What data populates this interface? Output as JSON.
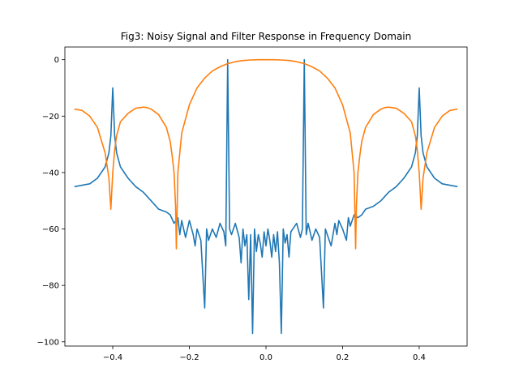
{
  "chart_data": {
    "type": "line",
    "title": "Fig3: Noisy Signal and Filter Response in Frequency Domain",
    "xlabel": "",
    "ylabel": "",
    "xlim": [
      -0.525,
      0.525
    ],
    "ylim": [
      -101.5,
      4.5
    ],
    "x_ticks": [
      -0.4,
      -0.2,
      0.0,
      0.2,
      0.4
    ],
    "x_tick_labels": [
      "−0.4",
      "−0.2",
      "0.0",
      "0.2",
      "0.4"
    ],
    "y_ticks": [
      0,
      -20,
      -40,
      -60,
      -80,
      -100
    ],
    "y_tick_labels": [
      "0",
      "−20",
      "−40",
      "−60",
      "−80",
      "−100"
    ],
    "grid": false,
    "legend": "none",
    "series": [
      {
        "color": "#1f77b4",
        "x": [
          -0.5,
          -0.48,
          -0.46,
          -0.44,
          -0.42,
          -0.41,
          -0.405,
          -0.4,
          -0.395,
          -0.39,
          -0.38,
          -0.36,
          -0.34,
          -0.32,
          -0.3,
          -0.28,
          -0.26,
          -0.25,
          -0.24,
          -0.23,
          -0.225,
          -0.22,
          -0.215,
          -0.21,
          -0.2,
          -0.19,
          -0.185,
          -0.18,
          -0.17,
          -0.16,
          -0.155,
          -0.15,
          -0.14,
          -0.13,
          -0.12,
          -0.11,
          -0.105,
          -0.1,
          -0.095,
          -0.09,
          -0.08,
          -0.07,
          -0.065,
          -0.06,
          -0.055,
          -0.05,
          -0.045,
          -0.04,
          -0.035,
          -0.03,
          -0.025,
          -0.02,
          -0.015,
          -0.01,
          -0.005,
          0.0,
          0.005,
          0.01,
          0.015,
          0.02,
          0.025,
          0.03,
          0.035,
          0.04,
          0.045,
          0.05,
          0.055,
          0.06,
          0.065,
          0.07,
          0.08,
          0.09,
          0.095,
          0.1,
          0.105,
          0.11,
          0.12,
          0.13,
          0.14,
          0.15,
          0.155,
          0.16,
          0.17,
          0.18,
          0.185,
          0.19,
          0.2,
          0.21,
          0.215,
          0.22,
          0.225,
          0.23,
          0.24,
          0.25,
          0.26,
          0.28,
          0.3,
          0.32,
          0.34,
          0.36,
          0.38,
          0.39,
          0.395,
          0.4,
          0.405,
          0.41,
          0.42,
          0.44,
          0.46,
          0.48,
          0.5
        ],
        "y": [
          -45,
          -44.5,
          -44,
          -42,
          -38,
          -33,
          -27,
          -10,
          -27,
          -33,
          -38,
          -42,
          -45,
          -47,
          -50,
          -53,
          -54,
          -55,
          -58,
          -56,
          -62,
          -57,
          -60,
          -63,
          -57,
          -62,
          -66,
          -60,
          -64,
          -88,
          -60,
          -64,
          -60,
          -63,
          -58,
          -61,
          -66,
          0,
          -60,
          -62,
          -58,
          -63,
          -72,
          -60,
          -66,
          -62,
          -85,
          -62,
          -97,
          -60,
          -68,
          -62,
          -65,
          -70,
          -61,
          -66,
          -60,
          -64,
          -70,
          -62,
          -68,
          -61,
          -72,
          -97,
          -60,
          -65,
          -62,
          -70,
          -61,
          -60,
          -58,
          -63,
          -60,
          0,
          -62,
          -58,
          -64,
          -60,
          -63,
          -88,
          -60,
          -62,
          -66,
          -58,
          -62,
          -57,
          -60,
          -64,
          -56,
          -59,
          -57,
          -55,
          -56,
          -55,
          -53,
          -52,
          -50,
          -47,
          -45,
          -42,
          -38,
          -33,
          -27,
          -10,
          -27,
          -33,
          -38,
          -42,
          -44,
          -44.5,
          -45
        ]
      },
      {
        "color": "#ff7f0e",
        "x": [
          -0.5,
          -0.48,
          -0.46,
          -0.44,
          -0.42,
          -0.41,
          -0.405,
          -0.4,
          -0.395,
          -0.39,
          -0.38,
          -0.36,
          -0.34,
          -0.32,
          -0.31,
          -0.3,
          -0.28,
          -0.26,
          -0.25,
          -0.245,
          -0.24,
          -0.236,
          -0.234,
          -0.23,
          -0.22,
          -0.2,
          -0.18,
          -0.16,
          -0.14,
          -0.12,
          -0.1,
          -0.08,
          -0.06,
          -0.04,
          -0.02,
          0.0,
          0.02,
          0.04,
          0.06,
          0.08,
          0.1,
          0.12,
          0.14,
          0.16,
          0.18,
          0.2,
          0.22,
          0.23,
          0.234,
          0.236,
          0.24,
          0.245,
          0.25,
          0.26,
          0.28,
          0.3,
          0.31,
          0.32,
          0.34,
          0.36,
          0.38,
          0.39,
          0.395,
          0.4,
          0.405,
          0.41,
          0.42,
          0.44,
          0.46,
          0.48,
          0.5
        ],
        "y": [
          -17.5,
          -18,
          -20,
          -24,
          -33,
          -42,
          -53,
          -40,
          -32,
          -27,
          -22,
          -19,
          -17.2,
          -16.8,
          -17,
          -17.5,
          -19.5,
          -24,
          -29,
          -34,
          -40,
          -52,
          -67,
          -40,
          -26,
          -16,
          -10,
          -6.5,
          -4,
          -2.5,
          -1.4,
          -0.7,
          -0.3,
          -0.1,
          0,
          0,
          0,
          -0.1,
          -0.3,
          -0.7,
          -1.4,
          -2.5,
          -4,
          -6.5,
          -10,
          -16,
          -26,
          -40,
          -67,
          -52,
          -40,
          -34,
          -29,
          -24,
          -19.5,
          -17.5,
          -17,
          -16.8,
          -17.2,
          -19,
          -22,
          -27,
          -32,
          -40,
          -53,
          -42,
          -33,
          -24,
          -20,
          -18,
          -17.5
        ]
      }
    ]
  }
}
